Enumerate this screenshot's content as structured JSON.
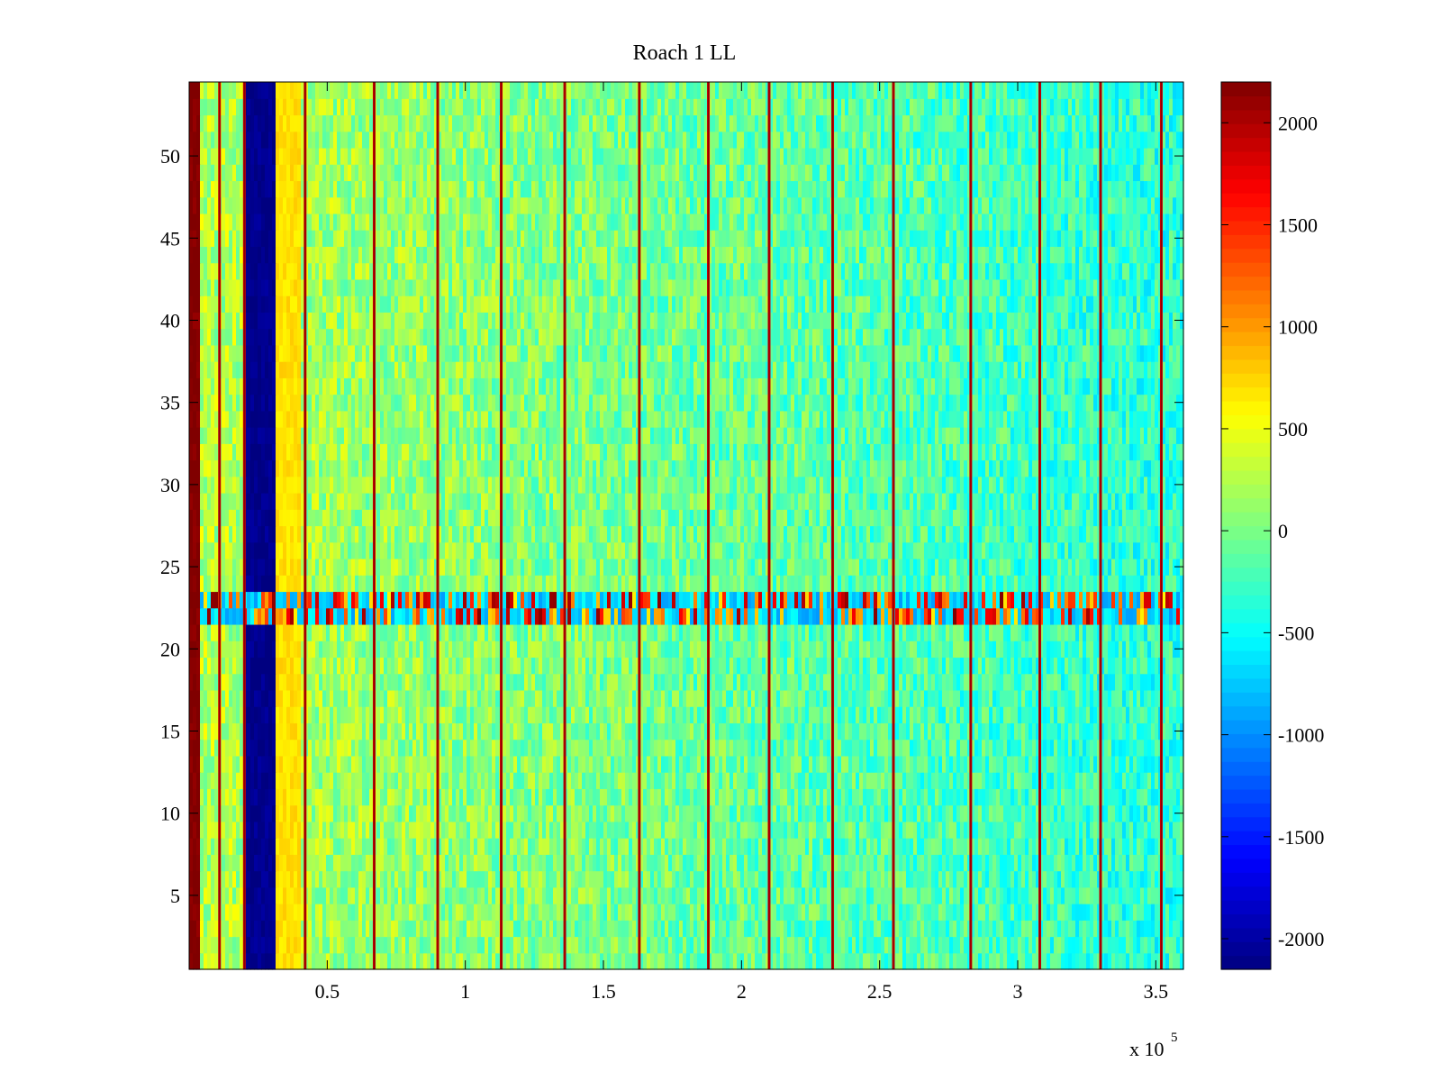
{
  "chart_data": {
    "type": "heatmap",
    "title": "Roach 1 LL",
    "xlabel": "",
    "ylabel": "",
    "x_multiplier_label": "x 10",
    "x_multiplier_exponent": "5",
    "xlim": [
      0,
      3.6
    ],
    "ylim": [
      0.5,
      54.5
    ],
    "x_ticks": [
      0.5,
      1,
      1.5,
      2,
      2.5,
      3,
      3.5
    ],
    "x_tick_labels": [
      "0.5",
      "1",
      "1.5",
      "2",
      "2.5",
      "3",
      "3.5"
    ],
    "y_ticks": [
      5,
      10,
      15,
      20,
      25,
      30,
      35,
      40,
      45,
      50
    ],
    "y_tick_labels": [
      "5",
      "10",
      "15",
      "20",
      "25",
      "30",
      "35",
      "40",
      "45",
      "50"
    ],
    "n_rows": 54,
    "colorbar": {
      "range": [
        -2150,
        2200
      ],
      "ticks": [
        -2000,
        -1500,
        -1000,
        -500,
        0,
        500,
        1000,
        1500,
        2000
      ],
      "tick_labels": [
        "-2000",
        "-1500",
        "-1000",
        "-500",
        "0",
        "500",
        "1000",
        "1500",
        "2000"
      ],
      "colormap": "jet"
    },
    "background_level": {
      "start": 250,
      "end": -350
    },
    "features": [
      {
        "kind": "column_band",
        "x_range": [
          0,
          0.04
        ],
        "value": 2200
      },
      {
        "kind": "column_band",
        "x_range": [
          0.2,
          0.31
        ],
        "value": -2100
      },
      {
        "kind": "column_band",
        "x_range": [
          0.31,
          0.4
        ],
        "value": 700
      },
      {
        "kind": "row_band",
        "y_range": [
          21.5,
          23.5
        ],
        "value": -700,
        "note": "alternating hot/cold stripes"
      }
    ],
    "vertical_lines_x": [
      0.11,
      0.2,
      0.42,
      0.67,
      0.9,
      1.13,
      1.36,
      1.63,
      1.88,
      2.1,
      2.33,
      2.55,
      2.83,
      3.08,
      3.3,
      3.52
    ],
    "vertical_line_value": 1900,
    "grid": false
  }
}
